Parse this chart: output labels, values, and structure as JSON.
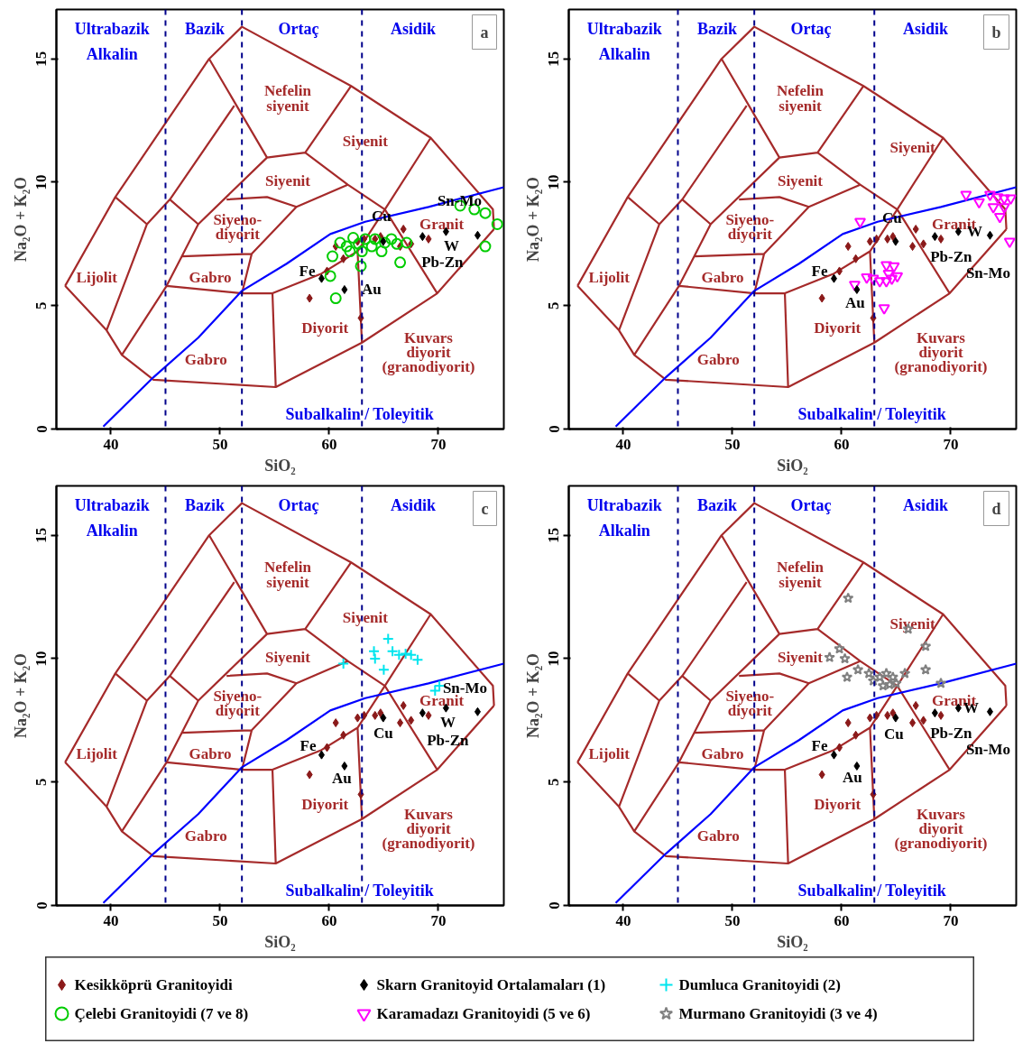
{
  "chart_data": [
    {
      "type": "scatter",
      "title": "a",
      "xlabel": "SiO₂",
      "ylabel": "Na₂O + K₂O",
      "xlim": [
        35,
        76
      ],
      "ylim": [
        0,
        17
      ],
      "xticks": [
        40,
        50,
        60,
        70
      ],
      "yticks": [
        0,
        5,
        10,
        15
      ],
      "legend": "bottom",
      "ref_lines": [
        {
          "axis": "x",
          "value": 45,
          "color": "#00008b",
          "line_style": "dashed"
        },
        {
          "axis": "x",
          "value": 52,
          "color": "#00008b",
          "line_style": "dashed"
        },
        {
          "axis": "x",
          "value": 63,
          "color": "#00008b",
          "line_style": "dashed"
        }
      ],
      "annotations": [
        "Ultrabazik",
        "Alkalin",
        "Bazik",
        "Ortaç",
        "Asidik",
        "Subalkalin / Toleyitik",
        "Nefelin\nsiyenit",
        "Siyenit",
        "Siyenit",
        "Siyeno-\ndiyorit",
        "Gabro",
        "Lijolit",
        "Gabro",
        "Diyorit",
        "Granit",
        "Kuvars\ndiyorit\n(granodiyorit)"
      ],
      "series": [
        {
          "type": "line",
          "color": "#a52a2a",
          "x": [
            35.8,
            40.4,
            49.0,
            52.0,
            62.0,
            69.3,
            75.0,
            75.1,
            null,
            35.8,
            39.6,
            41.0,
            43.9,
            55.1,
            63.0,
            69.9,
            75.1,
            null,
            40.4,
            43.3,
            null,
            39.6,
            43.3,
            45.4,
            51.3,
            null,
            41.0,
            45.1,
            46.5,
            48.0,
            54.3,
            null,
            45.4,
            48.0,
            null,
            49.0,
            54.3,
            57.8,
            62.0,
            null,
            57.8,
            61.7,
            65.1,
            69.3,
            null,
            62.6,
            65.1,
            69.9,
            null,
            45.1,
            52.0,
            54.8,
            59.3,
            62.6,
            63.0,
            null,
            50.6,
            54.3,
            57.0,
            61.7,
            null,
            52.0,
            52.9,
            57.0,
            null,
            46.5,
            52.9,
            null,
            54.8,
            55.1
          ],
          "values": [
            5.8,
            9.4,
            15.0,
            16.3,
            13.9,
            11.8,
            8.9,
            8.1,
            null,
            5.8,
            4.0,
            3.0,
            2.0,
            1.7,
            3.5,
            5.5,
            8.1,
            null,
            9.4,
            8.3,
            null,
            4.0,
            8.3,
            9.3,
            13.1,
            null,
            3.0,
            5.8,
            7.0,
            8.3,
            11.0,
            null,
            9.3,
            8.3,
            null,
            15.0,
            11.0,
            11.2,
            13.9,
            null,
            11.2,
            9.9,
            8.9,
            11.8,
            null,
            7.2,
            8.9,
            5.5,
            null,
            5.8,
            5.5,
            5.5,
            6.3,
            7.2,
            3.5,
            null,
            9.3,
            9.4,
            9.0,
            9.9,
            null,
            5.5,
            7.1,
            9.0,
            null,
            7.0,
            7.1,
            null,
            5.5,
            1.7
          ]
        },
        {
          "type": "line",
          "color": "#0000ff",
          "x": [
            39.3,
            43.9,
            48.0,
            52.0,
            56.1,
            60.1,
            63.3,
            69.1,
            76.0
          ],
          "values": [
            0.1,
            2.1,
            3.7,
            5.6,
            6.7,
            7.9,
            8.4,
            9.0,
            9.8
          ]
        },
        {
          "name": "Kesikköprü Granitoyidi",
          "color": "#8b1a1a",
          "marker": "diamond",
          "x": [
            58.2,
            59.8,
            60.6,
            61.3,
            62.6,
            63.2,
            64.2,
            64.7,
            66.5,
            66.8,
            67.5,
            69.1,
            62.9
          ],
          "values": [
            5.3,
            6.4,
            7.4,
            6.9,
            7.6,
            7.7,
            7.7,
            7.8,
            7.4,
            8.1,
            7.5,
            7.7,
            4.5
          ]
        },
        {
          "name": "Çelebi Granitoyidi (7 ve 8)",
          "color": "#00cc00",
          "marker": "circle",
          "x": [
            72.0,
            73.3,
            74.3,
            75.4,
            74.3,
            67.1,
            66.5,
            62.9,
            60.1,
            60.6,
            60.3,
            61.0,
            62.2,
            63.3,
            64.8,
            65.7,
            66.2,
            61.9,
            63.9,
            61.6,
            62.7,
            65.1,
            64.2,
            63.0
          ],
          "values": [
            9.05,
            8.9,
            8.75,
            8.3,
            7.4,
            7.55,
            6.75,
            6.6,
            6.2,
            5.3,
            7.0,
            7.55,
            7.75,
            7.7,
            7.2,
            7.7,
            7.5,
            7.2,
            7.4,
            7.4,
            7.5,
            7.55,
            7.7,
            7.2
          ]
        },
        {
          "name": "Skarn Granitoyid Ortalamaları (1)",
          "color": "#000000",
          "marker": "diamond",
          "x": [
            59.3,
            61.4,
            64.95,
            68.55,
            70.7,
            73.6
          ],
          "values": [
            6.1,
            5.65,
            7.6,
            7.8,
            8.0,
            7.85
          ],
          "value_labels": [
            "Fe",
            "Au",
            "Cu",
            "Pb-Zn",
            "W",
            "Sn-Mo"
          ]
        }
      ]
    },
    {
      "type": "scatter",
      "title": "b",
      "xlabel": "SiO₂",
      "ylabel": "Na₂O + K₂O",
      "xlim": [
        35,
        76
      ],
      "ylim": [
        0,
        17
      ],
      "xticks": [
        40,
        50,
        60,
        70
      ],
      "yticks": [
        0,
        5,
        10,
        15
      ],
      "legend": "bottom",
      "ref_lines": [
        {
          "axis": "x",
          "value": 45,
          "color": "#00008b",
          "line_style": "dashed"
        },
        {
          "axis": "x",
          "value": 52,
          "color": "#00008b",
          "line_style": "dashed"
        },
        {
          "axis": "x",
          "value": 63,
          "color": "#00008b",
          "line_style": "dashed"
        }
      ],
      "annotations": [
        "Ultrabazik",
        "Alkalin",
        "Bazik",
        "Ortaç",
        "Asidik",
        "Subalkalin / Toleyitik",
        "Nefelin\nsiyenit",
        "Siyenit",
        "Siyenit",
        "Siyeno-\ndiyorit",
        "Gabro",
        "Lijolit",
        "Gabro",
        "Diyorit",
        "Granit",
        "Kuvars\ndiyorit\n(granodiyorit)"
      ],
      "series": [
        {
          "type": "line",
          "color": "#a52a2a",
          "x": [
            35.8,
            40.4,
            49.0,
            52.0,
            62.0,
            69.3,
            75.0,
            75.1,
            null,
            35.8,
            39.6,
            41.0,
            43.9,
            55.1,
            63.0,
            69.9,
            75.1,
            null,
            40.4,
            43.3,
            null,
            39.6,
            43.3,
            45.4,
            51.3,
            null,
            41.0,
            45.1,
            46.5,
            48.0,
            54.3,
            null,
            45.4,
            48.0,
            null,
            49.0,
            54.3,
            57.8,
            62.0,
            null,
            57.8,
            61.7,
            65.1,
            69.3,
            null,
            62.6,
            65.1,
            69.9,
            null,
            45.1,
            52.0,
            54.8,
            59.3,
            62.6,
            63.0,
            null,
            50.6,
            54.3,
            57.0,
            61.7,
            null,
            52.0,
            52.9,
            57.0,
            null,
            46.5,
            52.9,
            null,
            54.8,
            55.1
          ],
          "values": [
            5.8,
            9.4,
            15.0,
            16.3,
            13.9,
            11.8,
            8.9,
            8.1,
            null,
            5.8,
            4.0,
            3.0,
            2.0,
            1.7,
            3.5,
            5.5,
            8.1,
            null,
            9.4,
            8.3,
            null,
            4.0,
            8.3,
            9.3,
            13.1,
            null,
            3.0,
            5.8,
            7.0,
            8.3,
            11.0,
            null,
            9.3,
            8.3,
            null,
            15.0,
            11.0,
            11.2,
            13.9,
            null,
            11.2,
            9.9,
            8.9,
            11.8,
            null,
            7.2,
            8.9,
            5.5,
            null,
            5.8,
            5.5,
            5.5,
            6.3,
            7.2,
            3.5,
            null,
            9.3,
            9.4,
            9.0,
            9.9,
            null,
            5.5,
            7.1,
            9.0,
            null,
            7.0,
            7.1,
            null,
            5.5,
            1.7
          ]
        },
        {
          "type": "line",
          "color": "#0000ff",
          "x": [
            39.3,
            43.9,
            48.0,
            52.0,
            56.1,
            60.1,
            63.3,
            69.1,
            76.0
          ],
          "values": [
            0.1,
            2.1,
            3.7,
            5.6,
            6.7,
            7.9,
            8.4,
            9.0,
            9.8
          ]
        },
        {
          "name": "Kesikköprü Granitoyidi",
          "color": "#8b1a1a",
          "marker": "diamond",
          "x": [
            58.2,
            59.8,
            60.6,
            61.3,
            62.6,
            63.2,
            64.2,
            64.7,
            66.5,
            66.8,
            67.5,
            69.1,
            62.9
          ],
          "values": [
            5.3,
            6.4,
            7.4,
            6.9,
            7.6,
            7.7,
            7.7,
            7.8,
            7.4,
            8.1,
            7.5,
            7.7,
            4.5
          ]
        },
        {
          "name": "Karamadazı Granitoyidi (5 ve 6)",
          "color": "#ff00ff",
          "marker": "triangle",
          "x": [
            61.7,
            71.4,
            72.6,
            73.6,
            74.3,
            74.9,
            75.5,
            73.9,
            74.5,
            74.9,
            75.4,
            64.1,
            64.8,
            64.3,
            62.3,
            62.9,
            63.5,
            64.1,
            64.6,
            65.1,
            61.2,
            63.9
          ],
          "values": [
            8.4,
            9.5,
            9.2,
            9.5,
            9.4,
            9.35,
            9.35,
            9.0,
            8.6,
            9.0,
            7.6,
            6.65,
            6.6,
            6.3,
            6.15,
            6.1,
            6.0,
            6.0,
            6.1,
            6.2,
            5.85,
            4.9
          ]
        },
        {
          "name": "Skarn Granitoyid Ortalamaları (1)",
          "color": "#000000",
          "marker": "diamond",
          "x": [
            59.3,
            61.4,
            64.95,
            68.55,
            70.7,
            73.6
          ],
          "values": [
            6.1,
            5.65,
            7.6,
            7.8,
            8.0,
            7.85
          ],
          "value_labels": [
            "Fe",
            "Au",
            "Cu",
            "Pb-Zn",
            "W",
            "Sn-Mo"
          ]
        }
      ]
    },
    {
      "type": "scatter",
      "title": "c",
      "xlabel": "SiO₂",
      "ylabel": "Na₂O + K₂O",
      "xlim": [
        35,
        76
      ],
      "ylim": [
        0,
        17
      ],
      "xticks": [
        40,
        50,
        60,
        70
      ],
      "yticks": [
        0,
        5,
        10,
        15
      ],
      "legend": "bottom",
      "ref_lines": [
        {
          "axis": "x",
          "value": 45,
          "color": "#00008b",
          "line_style": "dashed"
        },
        {
          "axis": "x",
          "value": 52,
          "color": "#00008b",
          "line_style": "dashed"
        },
        {
          "axis": "x",
          "value": 63,
          "color": "#00008b",
          "line_style": "dashed"
        }
      ],
      "annotations": [
        "Ultrabazik",
        "Alkalin",
        "Bazik",
        "Ortaç",
        "Asidik",
        "Subalkalin / Toleyitik",
        "Nefelin\nsiyenit",
        "Siyenit",
        "Siyenit",
        "Siyeno-\ndiyorit",
        "Gabro",
        "Lijolit",
        "Gabro",
        "Diyorit",
        "Granit",
        "Kuvars\ndiyorit\n(granodiyorit)"
      ],
      "series": [
        {
          "type": "line",
          "color": "#a52a2a",
          "x": [
            35.8,
            40.4,
            49.0,
            52.0,
            62.0,
            69.3,
            75.0,
            75.1,
            null,
            35.8,
            39.6,
            41.0,
            43.9,
            55.1,
            63.0,
            69.9,
            75.1,
            null,
            40.4,
            43.3,
            null,
            39.6,
            43.3,
            45.4,
            51.3,
            null,
            41.0,
            45.1,
            46.5,
            48.0,
            54.3,
            null,
            45.4,
            48.0,
            null,
            49.0,
            54.3,
            57.8,
            62.0,
            null,
            57.8,
            61.7,
            65.1,
            69.3,
            null,
            62.6,
            65.1,
            69.9,
            null,
            45.1,
            52.0,
            54.8,
            59.3,
            62.6,
            63.0,
            null,
            50.6,
            54.3,
            57.0,
            61.7,
            null,
            52.0,
            52.9,
            57.0,
            null,
            46.5,
            52.9,
            null,
            54.8,
            55.1
          ],
          "values": [
            5.8,
            9.4,
            15.0,
            16.3,
            13.9,
            11.8,
            8.9,
            8.1,
            null,
            5.8,
            4.0,
            3.0,
            2.0,
            1.7,
            3.5,
            5.5,
            8.1,
            null,
            9.4,
            8.3,
            null,
            4.0,
            8.3,
            9.3,
            13.1,
            null,
            3.0,
            5.8,
            7.0,
            8.3,
            11.0,
            null,
            9.3,
            8.3,
            null,
            15.0,
            11.0,
            11.2,
            13.9,
            null,
            11.2,
            9.9,
            8.9,
            11.8,
            null,
            7.2,
            8.9,
            5.5,
            null,
            5.8,
            5.5,
            5.5,
            6.3,
            7.2,
            3.5,
            null,
            9.3,
            9.4,
            9.0,
            9.9,
            null,
            5.5,
            7.1,
            9.0,
            null,
            7.0,
            7.1,
            null,
            5.5,
            1.7
          ]
        },
        {
          "type": "line",
          "color": "#0000ff",
          "x": [
            39.3,
            43.9,
            48.0,
            52.0,
            56.1,
            60.1,
            63.3,
            69.1,
            76.0
          ],
          "values": [
            0.1,
            2.1,
            3.7,
            5.6,
            6.7,
            7.9,
            8.4,
            9.0,
            9.8
          ]
        },
        {
          "name": "Kesikköprü Granitoyidi",
          "color": "#8b1a1a",
          "marker": "diamond",
          "x": [
            58.2,
            59.8,
            60.6,
            61.3,
            62.6,
            63.2,
            64.2,
            64.7,
            66.5,
            66.8,
            67.5,
            69.1,
            62.9
          ],
          "values": [
            5.3,
            6.4,
            7.4,
            6.9,
            7.6,
            7.7,
            7.7,
            7.8,
            7.4,
            8.1,
            7.5,
            7.7,
            4.5
          ]
        },
        {
          "name": "Dumluca Granitoyidi (2)",
          "color": "#00e5ee",
          "marker": "cross",
          "x": [
            61.3,
            65.4,
            64.1,
            64.2,
            65.0,
            65.8,
            66.4,
            67.0,
            67.5,
            68.1,
            70.1,
            69.7
          ],
          "values": [
            9.8,
            10.8,
            10.3,
            10.0,
            9.55,
            10.3,
            10.15,
            10.2,
            10.15,
            9.95,
            8.9,
            8.7
          ]
        },
        {
          "name": "Skarn Granitoyid Ortalamaları (1)",
          "color": "#000000",
          "marker": "diamond",
          "x": [
            59.3,
            61.4,
            64.95,
            68.55,
            70.7,
            73.6
          ],
          "values": [
            6.1,
            5.65,
            7.6,
            7.8,
            8.0,
            7.85
          ],
          "value_labels": [
            "Fe",
            "Au",
            "Cu",
            "Pb-Zn",
            "W",
            "Sn-Mo"
          ]
        }
      ]
    },
    {
      "type": "scatter",
      "title": "d",
      "xlabel": "SiO₂",
      "ylabel": "Na₂O + K₂O",
      "xlim": [
        35,
        76
      ],
      "ylim": [
        0,
        17
      ],
      "xticks": [
        40,
        50,
        60,
        70
      ],
      "yticks": [
        0,
        5,
        10,
        15
      ],
      "legend": "bottom",
      "ref_lines": [
        {
          "axis": "x",
          "value": 45,
          "color": "#00008b",
          "line_style": "dashed"
        },
        {
          "axis": "x",
          "value": 52,
          "color": "#00008b",
          "line_style": "dashed"
        },
        {
          "axis": "x",
          "value": 63,
          "color": "#00008b",
          "line_style": "dashed"
        }
      ],
      "annotations": [
        "Ultrabazik",
        "Alkalin",
        "Bazik",
        "Ortaç",
        "Asidik",
        "Subalkalin / Toleyitik",
        "Nefelin\nsiyenit",
        "Siyenit",
        "Siyenit",
        "Siyeno-\ndiyorit",
        "Gabro",
        "Lijolit",
        "Gabro",
        "Diyorit",
        "Granit",
        "Kuvars\ndiyorit\n(granodiyorit)"
      ],
      "series": [
        {
          "type": "line",
          "color": "#a52a2a",
          "x": [
            35.8,
            40.4,
            49.0,
            52.0,
            62.0,
            69.3,
            75.0,
            75.1,
            null,
            35.8,
            39.6,
            41.0,
            43.9,
            55.1,
            63.0,
            69.9,
            75.1,
            null,
            40.4,
            43.3,
            null,
            39.6,
            43.3,
            45.4,
            51.3,
            null,
            41.0,
            45.1,
            46.5,
            48.0,
            54.3,
            null,
            45.4,
            48.0,
            null,
            49.0,
            54.3,
            57.8,
            62.0,
            null,
            57.8,
            61.7,
            65.1,
            69.3,
            null,
            62.6,
            65.1,
            69.9,
            null,
            45.1,
            52.0,
            54.8,
            59.3,
            62.6,
            63.0,
            null,
            50.6,
            54.3,
            57.0,
            61.7,
            null,
            52.0,
            52.9,
            57.0,
            null,
            46.5,
            52.9,
            null,
            54.8,
            55.1
          ],
          "values": [
            5.8,
            9.4,
            15.0,
            16.3,
            13.9,
            11.8,
            8.9,
            8.1,
            null,
            5.8,
            4.0,
            3.0,
            2.0,
            1.7,
            3.5,
            5.5,
            8.1,
            null,
            9.4,
            8.3,
            null,
            4.0,
            8.3,
            9.3,
            13.1,
            null,
            3.0,
            5.8,
            7.0,
            8.3,
            11.0,
            null,
            9.3,
            8.3,
            null,
            15.0,
            11.0,
            11.2,
            13.9,
            null,
            11.2,
            9.9,
            8.9,
            11.8,
            null,
            7.2,
            8.9,
            5.5,
            null,
            5.8,
            5.5,
            5.5,
            6.3,
            7.2,
            3.5,
            null,
            9.3,
            9.4,
            9.0,
            9.9,
            null,
            5.5,
            7.1,
            9.0,
            null,
            7.0,
            7.1,
            null,
            5.5,
            1.7
          ]
        },
        {
          "type": "line",
          "color": "#0000ff",
          "x": [
            39.3,
            43.9,
            48.0,
            52.0,
            56.1,
            60.1,
            63.3,
            69.1,
            76.0
          ],
          "values": [
            0.1,
            2.1,
            3.7,
            5.6,
            6.7,
            7.9,
            8.4,
            9.0,
            9.8
          ]
        },
        {
          "name": "Kesikköprü Granitoyidi",
          "color": "#8b1a1a",
          "marker": "diamond",
          "x": [
            58.2,
            59.8,
            60.6,
            61.3,
            62.6,
            63.2,
            64.2,
            64.7,
            66.5,
            66.8,
            67.5,
            69.1,
            62.9
          ],
          "values": [
            5.3,
            6.4,
            7.4,
            6.9,
            7.6,
            7.7,
            7.7,
            7.8,
            7.4,
            8.1,
            7.5,
            7.7,
            4.5
          ]
        },
        {
          "name": "Murmano Granitoyidi (3 ve 4)",
          "color": "#808080",
          "marker": "star",
          "x": [
            60.6,
            66.1,
            67.7,
            67.7,
            69.1,
            58.9,
            59.8,
            60.3,
            60.5,
            61.5,
            62.5,
            62.9,
            63.5,
            64.1,
            64.7,
            63.8,
            64.4,
            65.0,
            65.8
          ],
          "values": [
            12.45,
            11.2,
            10.5,
            9.55,
            9.0,
            10.05,
            10.4,
            10.0,
            9.25,
            9.55,
            9.4,
            9.1,
            9.25,
            9.4,
            9.25,
            8.9,
            8.95,
            9.0,
            9.4
          ]
        },
        {
          "name": "Skarn Granitoyid Ortalamaları (1)",
          "color": "#000000",
          "marker": "diamond",
          "x": [
            59.3,
            61.4,
            64.95,
            68.55,
            70.7,
            73.6
          ],
          "values": [
            6.1,
            5.65,
            7.6,
            7.8,
            8.0,
            7.85
          ],
          "value_labels": [
            "Fe",
            "Au",
            "Cu",
            "Pb-Zn",
            "W",
            "Sn-Mo"
          ]
        }
      ]
    }
  ]
}
